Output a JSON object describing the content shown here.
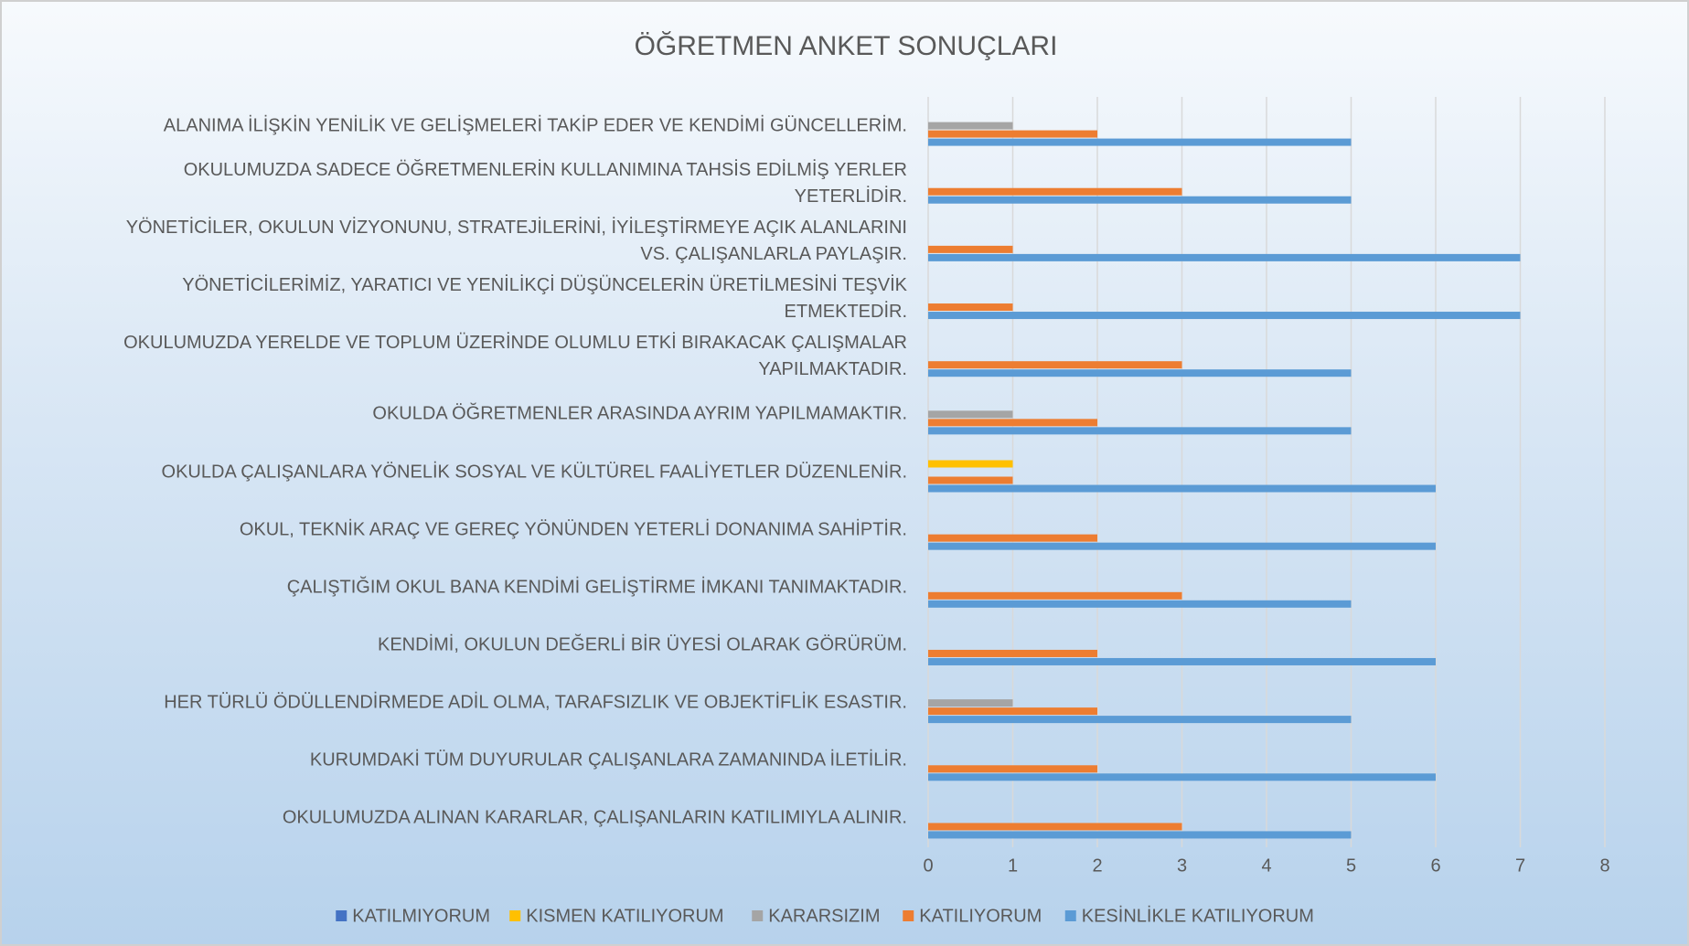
{
  "chart_data": {
    "type": "barh",
    "title": "ÖĞRETMEN ANKET SONUÇLARI",
    "categories": [
      "ALANIMA İLİŞKİN YENİLİK VE GELİŞMELERİ TAKİP EDER VE KENDİMİ GÜNCELLERİM.",
      "OKULUMUZDA SADECE ÖĞRETMENLERİN KULLANIMINA TAHSİS EDİLMİŞ YERLER YETERLİDİR.",
      "YÖNETİCİLER, OKULUN VİZYONUNU, STRATEJİLERİNİ, İYİLEŞTİRMEYE AÇIK ALANLARINI VS. ÇALIŞANLARLA PAYLAŞIR.",
      "YÖNETİCİLERİMİZ, YARATICI VE YENİLİKÇİ DÜŞÜNCELERİN ÜRETİLMESİNİ TEŞVİK ETMEKTEDİR.",
      "OKULUMUZDA YERELDE VE TOPLUM ÜZERİNDE OLUMLU ETKİ BIRAKACAK ÇALIŞMALAR YAPILMAKTADIR.",
      "OKULDA ÖĞRETMENLER ARASINDA AYRIM YAPILMAMAKTIR.",
      "OKULDA ÇALIŞANLARA YÖNELİK SOSYAL VE KÜLTÜREL FAALİYETLER DÜZENLENİR.",
      "OKUL, TEKNİK ARAÇ VE GEREÇ YÖNÜNDEN YETERLİ DONANIMA SAHİPTİR.",
      "ÇALIŞTIĞIM OKUL BANA KENDİMİ GELİŞTİRME İMKANI TANIMAKTADIR.",
      "KENDİMİ, OKULUN DEĞERLİ BİR ÜYESİ OLARAK GÖRÜRÜM.",
      "HER TÜRLÜ ÖDÜLLENDİRMEDE ADİL OLMA, TARAFSIZLIK VE OBJEKTİFLİK ESASTIR.",
      "KURUMDAKİ TÜM DUYURULAR ÇALIŞANLARA ZAMANINDA İLETİLİR.",
      "OKULUMUZDA ALINAN KARARLAR, ÇALIŞANLARIN KATILIMIYLA ALINIR."
    ],
    "series": [
      {
        "name": "KATILMIYORUM",
        "color": "#4472c4",
        "values": [
          0,
          0,
          0,
          0,
          0,
          0,
          0,
          0,
          0,
          0,
          0,
          0,
          0
        ]
      },
      {
        "name": "KISMEN KATILIYORUM",
        "color": "#ffc000",
        "values": [
          0,
          0,
          0,
          0,
          0,
          0,
          1,
          0,
          0,
          0,
          0,
          0,
          0
        ]
      },
      {
        "name": "KARARSIZIM",
        "color": "#a5a5a5",
        "values": [
          1,
          0,
          0,
          0,
          0,
          1,
          0,
          0,
          0,
          0,
          1,
          0,
          0
        ]
      },
      {
        "name": "KATILIYORUM",
        "color": "#ed7d31",
        "values": [
          2,
          3,
          1,
          1,
          3,
          2,
          1,
          2,
          3,
          2,
          2,
          2,
          3
        ]
      },
      {
        "name": "KESİNLİKLE KATILIYORUM",
        "color": "#5b9bd5",
        "values": [
          5,
          5,
          7,
          7,
          5,
          5,
          6,
          6,
          5,
          6,
          5,
          6,
          5
        ]
      }
    ],
    "xlim": [
      0,
      8
    ],
    "xticks": [
      0,
      1,
      2,
      3,
      4,
      5,
      6,
      7,
      8
    ],
    "grid": true,
    "legend": "bottom"
  }
}
